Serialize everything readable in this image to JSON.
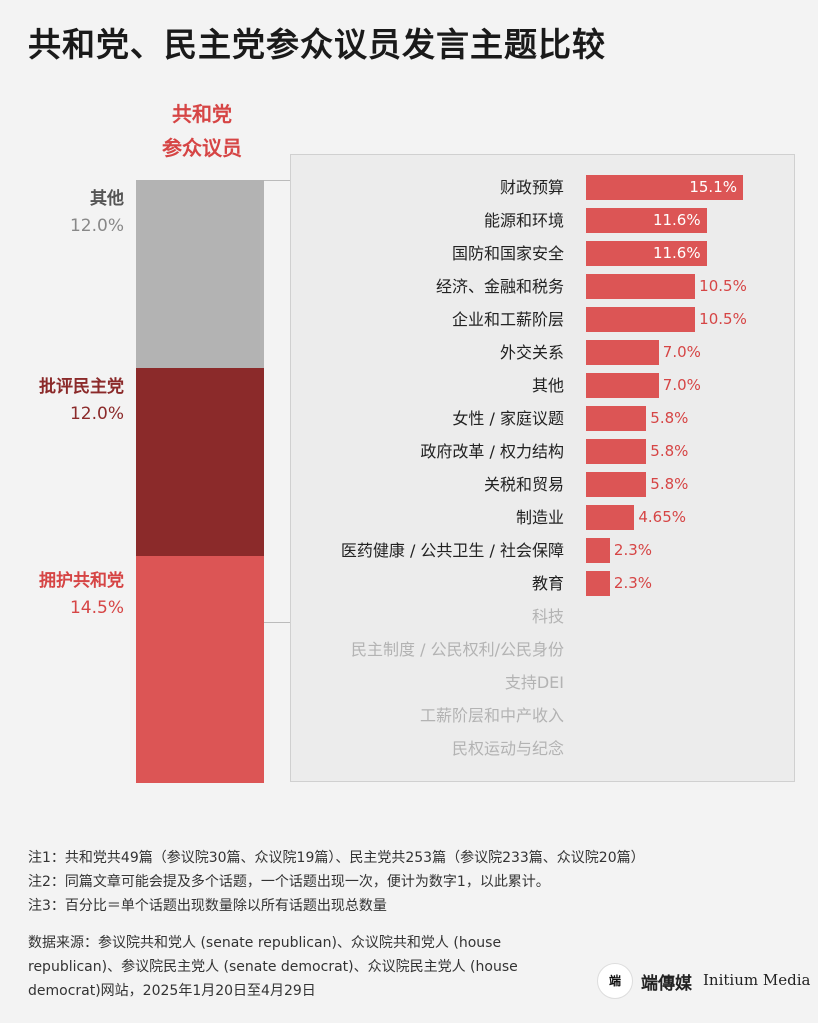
{
  "title": "共和党、民主党参众议员发言主题比较",
  "column_header": [
    "共和党",
    "参众议员"
  ],
  "colors": {
    "grey": "#b3b3b3",
    "dark_red": "#8b2a2a",
    "red": "#dc5555",
    "label_red": "#d64545"
  },
  "stack_segments": [
    {
      "name": "其他",
      "pct": "12.0%",
      "value": 12.0,
      "color": "#b3b3b3",
      "name_color": "#555555",
      "pct_color": "#888888"
    },
    {
      "name": "批评民主党",
      "pct": "12.0%",
      "value": 12.0,
      "color": "#8b2a2a",
      "name_color": "#8b2a2a",
      "pct_color": "#8b2a2a"
    },
    {
      "name": "拥护共和党",
      "pct": "14.5%",
      "value": 14.5,
      "color": "#dc5555",
      "name_color": "#d64545",
      "pct_color": "#d64545"
    }
  ],
  "chart_data": {
    "type": "bar",
    "orientation": "horizontal",
    "title": "共和党、民主党参众议员发言主题比较",
    "series": [
      {
        "name": "共和党参众议员",
        "color": "#dc5555"
      }
    ],
    "categories": [
      "财政预算",
      "能源和环境",
      "国防和国家安全",
      "经济、金融和税务",
      "企业和工薪阶层",
      "外交关系",
      "其他",
      "女性 / 家庭议题",
      "政府改革 / 权力结构",
      "关税和贸易",
      "制造业",
      "医药健康 / 公共卫生 / 社会保障",
      "教育",
      "科技",
      "民主制度 / 公民权利/公民身份",
      "支持DEI",
      "工薪阶层和中产收入",
      "民权运动与纪念"
    ],
    "values": [
      15.1,
      11.6,
      11.6,
      10.5,
      10.5,
      7.0,
      7.0,
      5.8,
      5.8,
      5.8,
      4.65,
      2.3,
      2.3,
      null,
      null,
      null,
      null,
      null
    ],
    "value_labels": [
      "15.1%",
      "11.6%",
      "11.6%",
      "10.5%",
      "10.5%",
      "7.0%",
      "7.0%",
      "5.8%",
      "5.8%",
      "5.8%",
      "4.65%",
      "2.3%",
      "2.3%",
      "",
      "",
      "",
      "",
      ""
    ]
  },
  "notes": [
    "注1：共和党共49篇（参议院30篇、众议院19篇）、民主党共253篇（参议院233篇、众议院20篇）",
    "注2：同篇文章可能会提及多个话题，一个话题出现一次，便计为数字1，以此累计。",
    "注3：百分比＝单个话题出现数量除以所有话题出现总数量"
  ],
  "source": "数据来源：参议院共和党人 (senate republican)、众议院共和党人 (house republican)、参议院民主党人 (senate democrat)、众议院民主党人 (house democrat)网站，2025年1月20日至4月29日",
  "logo": {
    "mark": "端",
    "cn": "端傳媒",
    "en": "Initium Media"
  }
}
